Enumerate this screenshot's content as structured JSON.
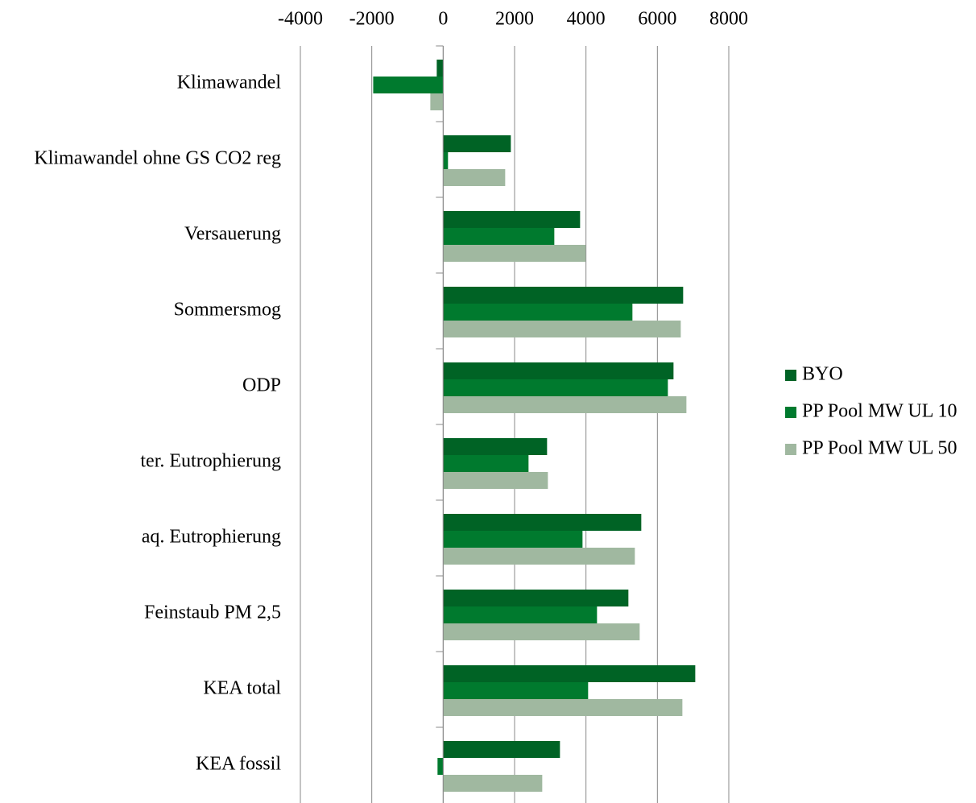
{
  "chart_data": {
    "type": "barh",
    "categories": [
      "Klimawandel",
      "Klimawandel ohne GS CO2 reg",
      "Versauerung",
      "Sommersmog",
      "ODP",
      "ter. Eutrophierung",
      "aq. Eutrophierung",
      "Feinstaub PM 2,5",
      "KEA total",
      "KEA fossil"
    ],
    "series": [
      {
        "name": "BYO",
        "color": "#006325",
        "values": [
          -180,
          1895,
          3835,
          6722,
          6452,
          2910,
          5549,
          5188,
          7061,
          3271
        ]
      },
      {
        "name": "PP Pool MW UL 10",
        "color": "#007a2e",
        "values": [
          -1960,
          135,
          3113,
          5301,
          6294,
          2391,
          3903,
          4309,
          4060,
          -158
        ]
      },
      {
        "name": "PP Pool MW UL 50",
        "color": "#a0b8a0",
        "values": [
          -360,
          1737,
          3993,
          6655,
          6813,
          2933,
          5369,
          5504,
          6700,
          2775
        ]
      }
    ],
    "xlim": [
      -4000,
      8000
    ],
    "xticks": [
      -4000,
      -2000,
      0,
      2000,
      4000,
      6000,
      8000
    ],
    "grid": true,
    "legend": "right"
  }
}
